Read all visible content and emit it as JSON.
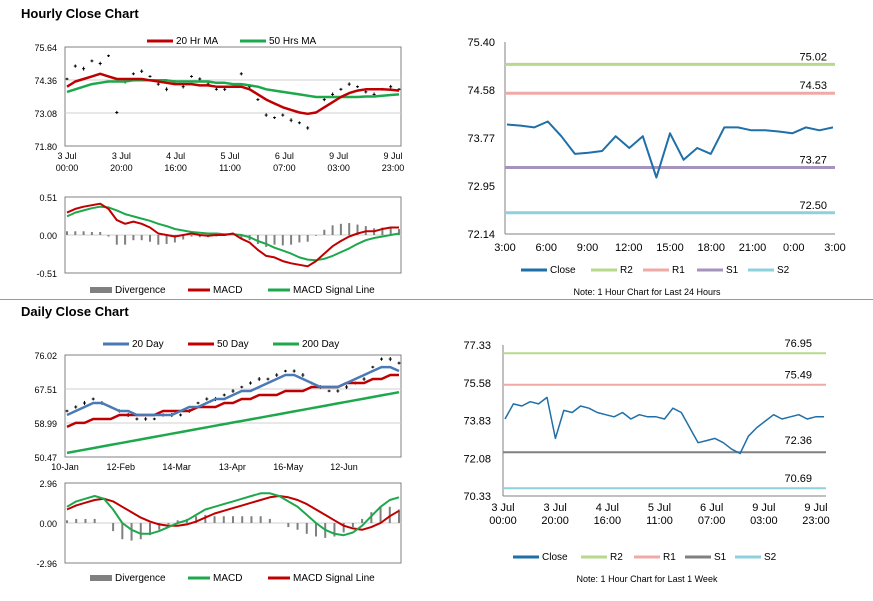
{
  "titles": {
    "hourly": "Hourly Close Chart",
    "daily": "Daily Close Chart"
  },
  "chart_data": [
    {
      "id": "hourly-price",
      "type": "line",
      "legend": [
        "20 Hr MA",
        "50 Hrs MA"
      ],
      "colors": {
        "ma20": "#c00000",
        "ma50": "#1ea84c",
        "price": "#000000"
      },
      "yticks": [
        "75.64",
        "74.36",
        "73.08",
        "71.80"
      ],
      "ylim": [
        71.8,
        75.64
      ],
      "xticks": [
        [
          "3 Jul",
          "00:00"
        ],
        [
          "3 Jul",
          "20:00"
        ],
        [
          "4 Jul",
          "16:00"
        ],
        [
          "5 Jul",
          "11:00"
        ],
        [
          "6 Jul",
          "07:00"
        ],
        [
          "9 Jul",
          "03:00"
        ],
        [
          "9 Jul",
          "23:00"
        ]
      ],
      "price": [
        74.4,
        74.9,
        74.8,
        75.1,
        75.0,
        75.3,
        73.1,
        74.3,
        74.6,
        74.7,
        74.5,
        74.2,
        74.0,
        74.3,
        74.1,
        74.5,
        74.4,
        74.2,
        74.0,
        74.0,
        74.1,
        74.6,
        74.1,
        73.6,
        73.0,
        72.9,
        73.0,
        72.8,
        72.7,
        72.5,
        73.1,
        73.6,
        73.8,
        74.0,
        74.2,
        74.1,
        73.9,
        73.8,
        74.0,
        74.1,
        74.0
      ],
      "ma20": [
        74.1,
        74.3,
        74.4,
        74.5,
        74.6,
        74.5,
        74.4,
        74.4,
        74.4,
        74.4,
        74.35,
        74.3,
        74.25,
        74.2,
        74.2,
        74.2,
        74.15,
        74.15,
        74.1,
        74.1,
        74.1,
        74.1,
        74.0,
        73.8,
        73.6,
        73.45,
        73.3,
        73.2,
        73.1,
        73.05,
        73.1,
        73.3,
        73.5,
        73.7,
        73.85,
        73.95,
        74.0,
        74.0,
        74.0,
        73.98,
        73.95
      ],
      "ma50": [
        73.9,
        74.0,
        74.1,
        74.2,
        74.25,
        74.3,
        74.3,
        74.3,
        74.35,
        74.35,
        74.35,
        74.35,
        74.35,
        74.3,
        74.3,
        74.3,
        74.3,
        74.3,
        74.25,
        74.25,
        74.2,
        74.2,
        74.15,
        74.1,
        74.0,
        73.95,
        73.9,
        73.85,
        73.8,
        73.75,
        73.7,
        73.7,
        73.7,
        73.7,
        73.7,
        73.7,
        73.72,
        73.72,
        73.75,
        73.78,
        73.8
      ]
    },
    {
      "id": "hourly-macd",
      "type": "line",
      "legend": [
        "Divergence",
        "MACD",
        "MACD Signal Line"
      ],
      "colors": {
        "divergence": "#808080",
        "macd": "#c00000",
        "signal": "#1ea84c"
      },
      "yticks": [
        "0.51",
        "0.00",
        "-0.51"
      ],
      "ylim": [
        -0.51,
        0.51
      ],
      "macd": [
        0.3,
        0.35,
        0.38,
        0.4,
        0.42,
        0.35,
        0.2,
        0.15,
        0.18,
        0.15,
        0.1,
        0.02,
        0.0,
        -0.02,
        0.0,
        0.02,
        0.0,
        -0.01,
        0.0,
        0.0,
        0.02,
        -0.05,
        -0.1,
        -0.2,
        -0.28,
        -0.3,
        -0.35,
        -0.38,
        -0.4,
        -0.42,
        -0.35,
        -0.25,
        -0.15,
        -0.08,
        -0.02,
        0.02,
        0.05,
        0.05,
        0.08,
        0.1,
        0.1
      ],
      "signal": [
        0.25,
        0.3,
        0.33,
        0.36,
        0.38,
        0.37,
        0.33,
        0.28,
        0.25,
        0.22,
        0.19,
        0.15,
        0.12,
        0.08,
        0.06,
        0.04,
        0.03,
        0.02,
        0.02,
        0.01,
        0.01,
        0.0,
        -0.03,
        -0.08,
        -0.12,
        -0.17,
        -0.21,
        -0.25,
        -0.3,
        -0.33,
        -0.34,
        -0.32,
        -0.28,
        -0.23,
        -0.18,
        -0.12,
        -0.07,
        -0.04,
        -0.02,
        0.0,
        0.02
      ]
    },
    {
      "id": "hourly-levels",
      "type": "line",
      "legend": [
        "Close",
        "R2",
        "R1",
        "S1",
        "S2"
      ],
      "colors": {
        "close": "#1f6fa8",
        "r2": "#b7d98b",
        "r1": "#f0aaa6",
        "s1": "#a693bd",
        "s2": "#8fd0dd"
      },
      "yticks": [
        "75.40",
        "74.58",
        "73.77",
        "72.95",
        "72.14"
      ],
      "ylim": [
        72.14,
        75.4
      ],
      "xticks": [
        "3:00",
        "6:00",
        "9:00",
        "12:00",
        "15:00",
        "18:00",
        "21:00",
        "0:00",
        "3:00"
      ],
      "levels": {
        "r2": 75.02,
        "r1": 74.53,
        "s1": 73.27,
        "s2": 72.5
      },
      "level_labels": {
        "r2": "75.02",
        "r1": "74.53",
        "s1": "73.27",
        "s2": "72.50"
      },
      "close": [
        74.0,
        73.98,
        73.95,
        74.05,
        73.8,
        73.5,
        73.52,
        73.55,
        73.8,
        73.6,
        73.8,
        73.1,
        73.85,
        73.4,
        73.6,
        73.5,
        73.95,
        73.95,
        73.9,
        73.9,
        73.88,
        73.85,
        73.95,
        73.9,
        73.95
      ],
      "note": "Note: 1 Hour Chart for Last 24 Hours"
    },
    {
      "id": "daily-price",
      "type": "line",
      "legend": [
        "20 Day",
        "50 Day",
        "200 Day"
      ],
      "colors": {
        "d20": "#4a7ab5",
        "d50": "#c00000",
        "d200": "#1ea84c",
        "price": "#000000"
      },
      "yticks": [
        "76.02",
        "67.51",
        "58.99",
        "50.47"
      ],
      "ylim": [
        50.47,
        76.02
      ],
      "xticks": [
        "10-Jan",
        "12-Feb",
        "14-Mar",
        "13-Apr",
        "16-May",
        "12-Jun"
      ],
      "price": [
        62,
        63,
        64,
        65,
        64,
        63,
        62,
        61,
        60,
        60,
        60,
        61,
        61,
        61,
        62,
        64,
        65,
        65,
        66,
        67,
        68,
        69,
        70,
        70,
        71,
        72,
        72,
        71,
        69,
        68,
        67,
        67,
        68,
        69,
        70,
        73,
        75,
        75,
        74
      ],
      "d20": [
        61,
        62,
        63,
        64,
        64,
        63,
        62,
        62,
        61,
        61,
        61,
        61,
        61,
        62,
        63,
        63,
        64,
        65,
        65,
        66,
        67,
        67,
        68,
        69,
        70,
        71,
        71,
        70,
        69,
        68,
        68,
        68,
        69,
        70,
        71,
        72,
        73,
        73,
        72
      ],
      "d50": [
        58,
        59,
        59,
        60,
        60,
        60,
        61,
        61,
        61,
        61,
        61,
        62,
        62,
        62,
        62,
        63,
        63,
        63,
        64,
        64,
        65,
        65,
        66,
        66,
        66,
        67,
        67,
        67,
        68,
        68,
        68,
        68,
        69,
        69,
        69,
        70,
        70,
        71,
        71
      ],
      "d200": [
        51.5,
        51.9,
        52.3,
        52.7,
        53.1,
        53.5,
        53.9,
        54.3,
        54.7,
        55.1,
        55.5,
        55.9,
        56.3,
        56.7,
        57.1,
        57.5,
        57.9,
        58.3,
        58.7,
        59.1,
        59.5,
        59.9,
        60.3,
        60.7,
        61.1,
        61.5,
        61.9,
        62.3,
        62.7,
        63.1,
        63.5,
        63.9,
        64.3,
        64.7,
        65.1,
        65.5,
        65.9,
        66.3,
        66.7
      ]
    },
    {
      "id": "daily-macd",
      "type": "line",
      "legend": [
        "Divergence",
        "MACD",
        "MACD Signal Line"
      ],
      "colors": {
        "divergence": "#808080",
        "macd": "#1ea84c",
        "signal": "#c00000"
      },
      "yticks": [
        "2.96",
        "0.00",
        "-2.96"
      ],
      "ylim": [
        -2.96,
        2.96
      ],
      "macd": [
        1.2,
        1.6,
        1.8,
        2.0,
        1.8,
        1.0,
        0.0,
        -0.5,
        -0.8,
        -0.8,
        -0.6,
        -0.3,
        0.0,
        0.2,
        0.6,
        1.0,
        1.2,
        1.4,
        1.6,
        1.8,
        2.0,
        2.2,
        2.2,
        2.0,
        1.6,
        1.2,
        0.6,
        0.0,
        -0.5,
        -0.8,
        -0.9,
        -0.7,
        -0.2,
        0.5,
        1.2,
        1.7,
        1.9
      ],
      "signal": [
        1.0,
        1.3,
        1.5,
        1.7,
        1.8,
        1.6,
        1.2,
        0.8,
        0.4,
        0.1,
        -0.1,
        -0.2,
        -0.2,
        -0.1,
        0.1,
        0.4,
        0.7,
        0.9,
        1.1,
        1.3,
        1.5,
        1.7,
        1.9,
        2.0,
        1.9,
        1.7,
        1.4,
        1.0,
        0.6,
        0.2,
        -0.2,
        -0.4,
        -0.5,
        -0.3,
        0.0,
        0.5,
        0.9
      ]
    },
    {
      "id": "daily-levels",
      "type": "line",
      "legend": [
        "Close",
        "R2",
        "R1",
        "S1",
        "S2"
      ],
      "colors": {
        "close": "#1f6fa8",
        "r2": "#b7d98b",
        "r1": "#f0aaa6",
        "s1": "#808080",
        "s2": "#8fd0dd"
      },
      "yticks": [
        "77.33",
        "75.58",
        "73.83",
        "72.08",
        "70.33"
      ],
      "ylim": [
        70.33,
        77.33
      ],
      "xticks": [
        [
          "3 Jul",
          "00:00"
        ],
        [
          "3 Jul",
          "20:00"
        ],
        [
          "4 Jul",
          "16:00"
        ],
        [
          "5 Jul",
          "11:00"
        ],
        [
          "6 Jul",
          "07:00"
        ],
        [
          "9 Jul",
          "03:00"
        ],
        [
          "9 Jul",
          "23:00"
        ]
      ],
      "levels": {
        "r2": 76.95,
        "r1": 75.49,
        "s1": 72.36,
        "s2": 70.69
      },
      "level_labels": {
        "r2": "76.95",
        "r1": "75.49",
        "s1": "72.36",
        "s2": "70.69"
      },
      "close": [
        73.9,
        74.6,
        74.5,
        74.7,
        74.6,
        74.9,
        73.0,
        74.3,
        74.2,
        74.5,
        74.4,
        74.2,
        74.1,
        74.0,
        74.2,
        73.9,
        74.1,
        74.0,
        74.0,
        73.9,
        74.4,
        74.2,
        73.5,
        72.8,
        72.9,
        73.0,
        72.8,
        72.5,
        72.3,
        73.1,
        73.5,
        73.8,
        74.1,
        73.9,
        74.0,
        74.1,
        73.9,
        74.0,
        74.0
      ],
      "note": "Note: 1 Hour Chart for Last 1 Week"
    }
  ]
}
